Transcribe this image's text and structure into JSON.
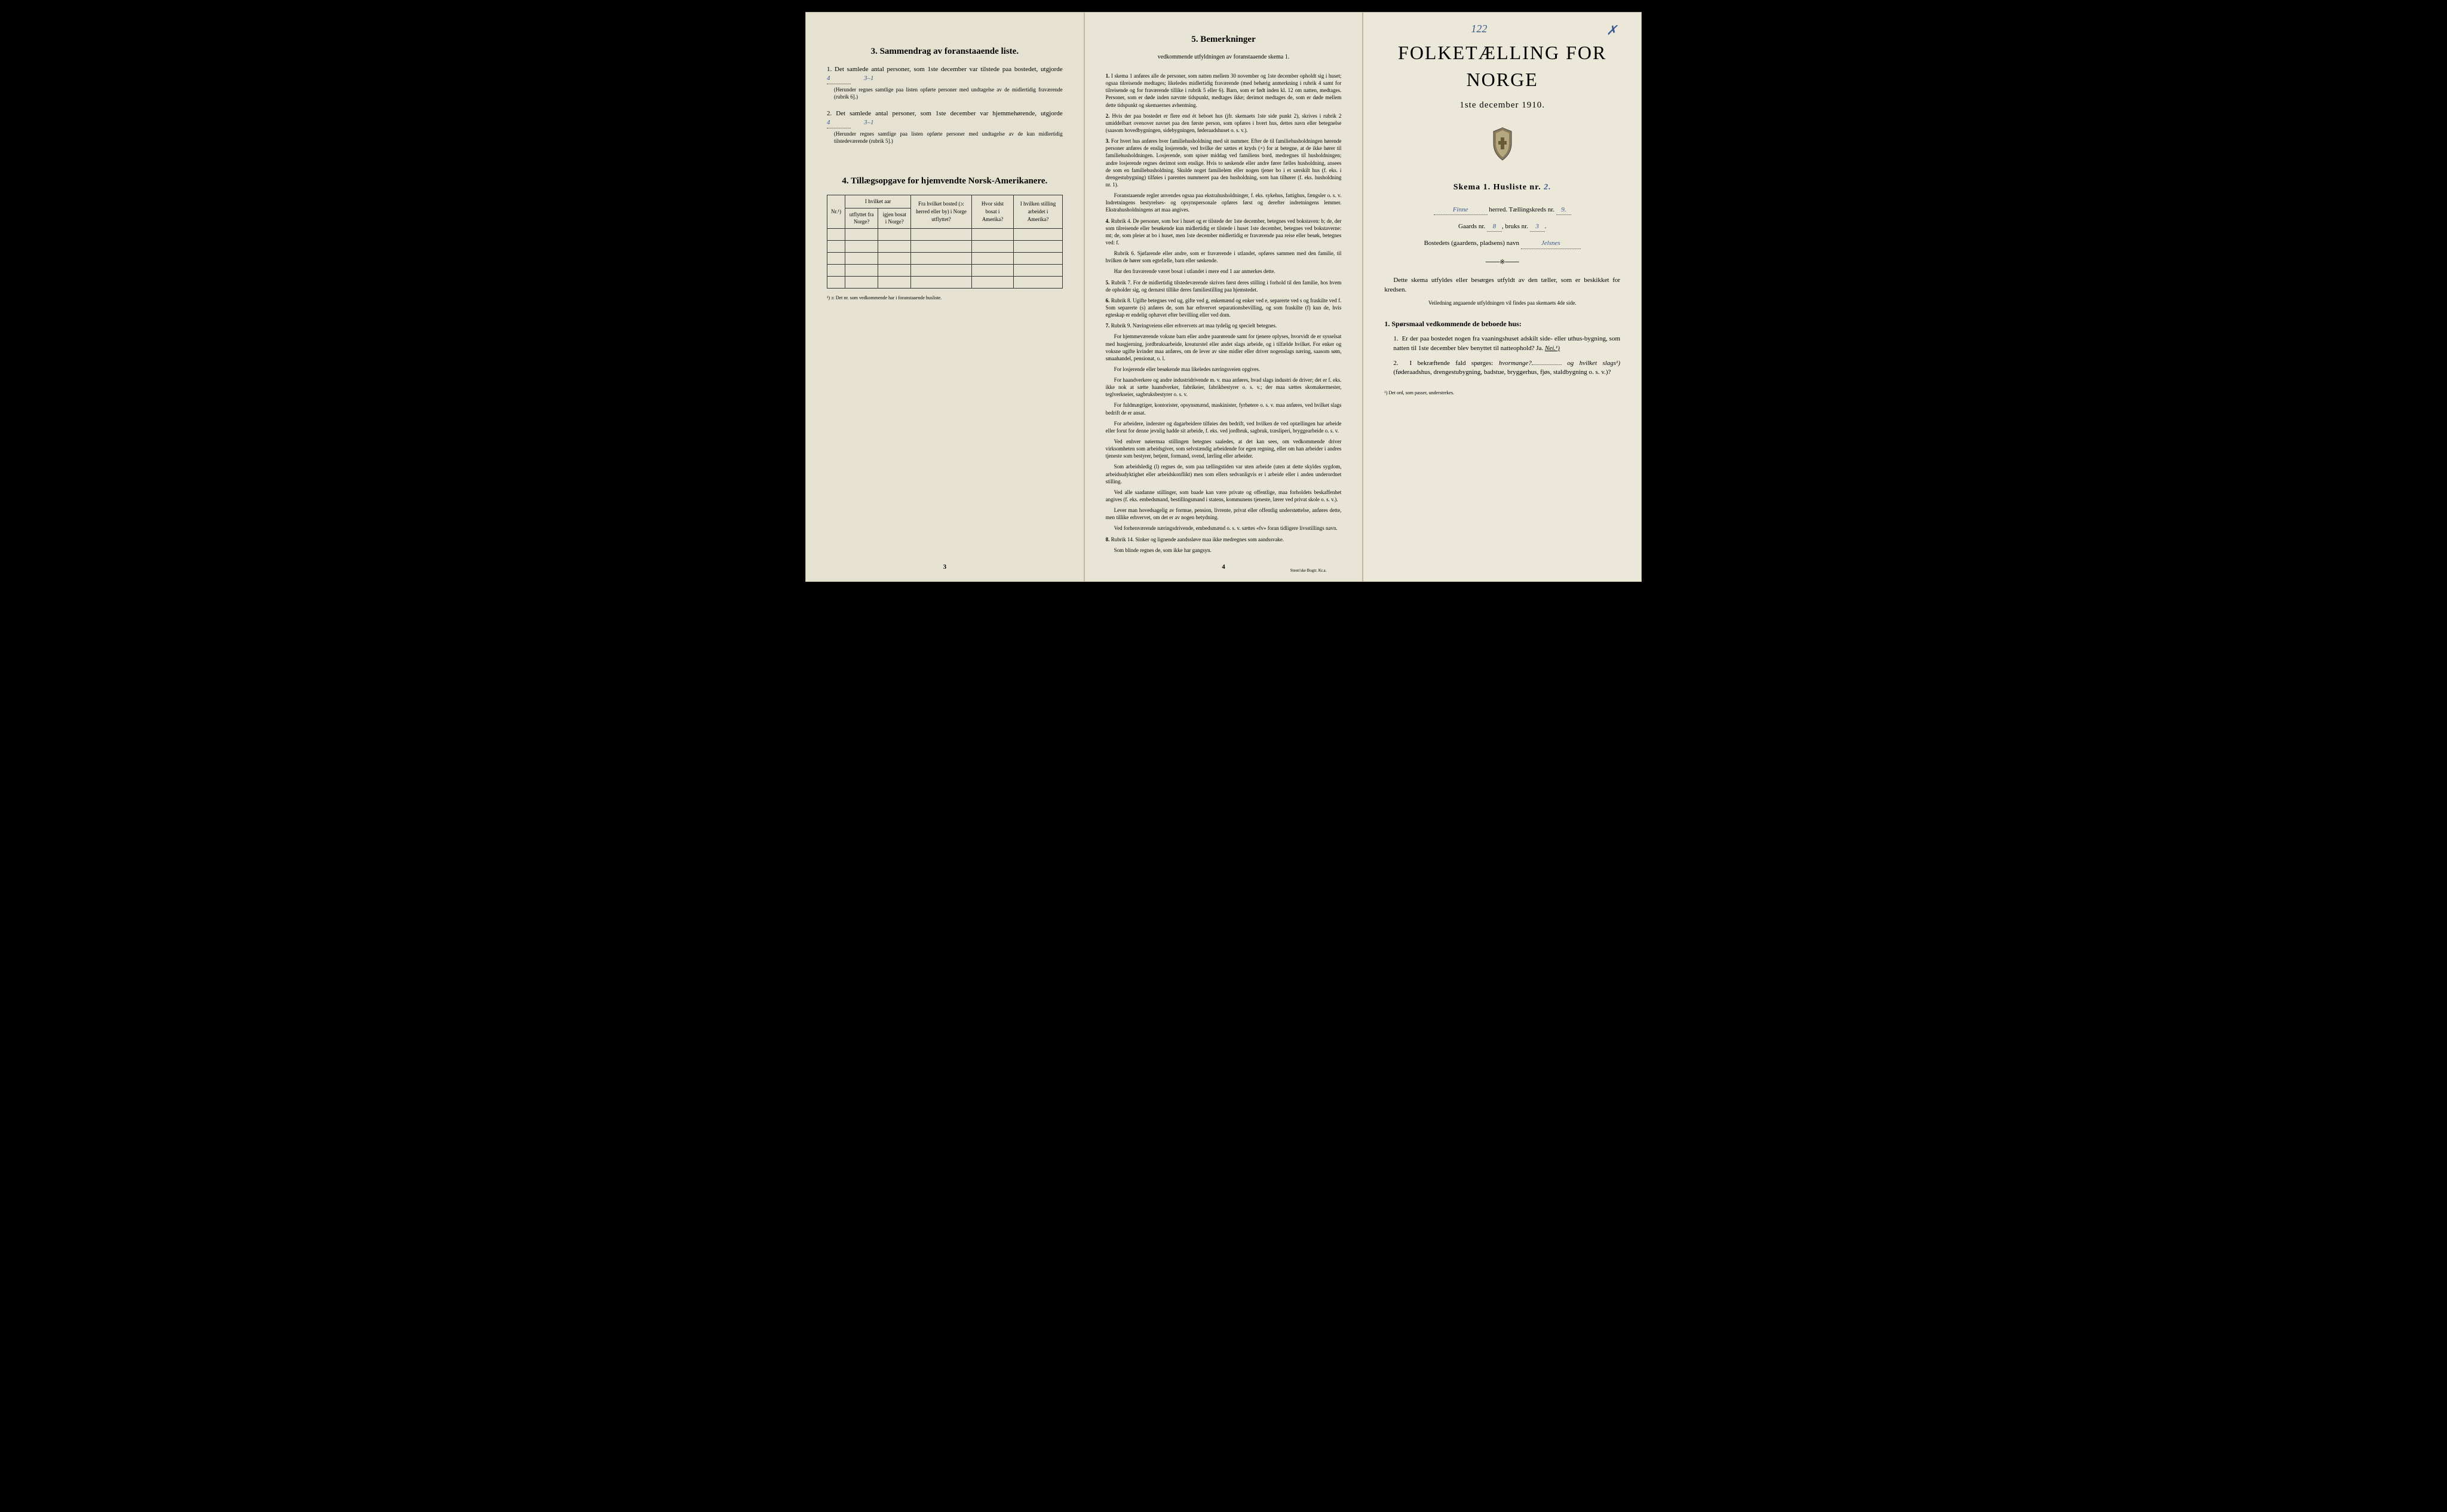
{
  "page1": {
    "section3_title": "3.  Sammendrag av foranstaaende liste.",
    "item1_text": "Det samlede antal personer, som 1ste december var tilstede paa bostedet, utgjorde",
    "item1_value": "4",
    "item1_gender": "3–1",
    "item1_note": "(Herunder regnes samtlige paa listen opførte personer med undtagelse av de midlertidig fraværende (rubrik 6].)",
    "item2_text": "Det samlede antal personer, som 1ste december var hjemmehørende, utgjorde",
    "item2_value": "4",
    "item2_gender": "3–1",
    "item2_note": "(Herunder regnes samtlige paa listen opførte personer med undtagelse av de kun midlertidig tilstedeværende (rubrik 5].)",
    "section4_title": "4.  Tillægsopgave for hjemvendte Norsk-Amerikanere.",
    "table": {
      "headers": {
        "nr": "Nr.¹)",
        "col1_top": "I hvilket aar",
        "col1a": "utflyttet fra Norge?",
        "col1b": "igjen bosat i Norge?",
        "col2": "Fra hvilket bosted (ɔ: herred eller by) i Norge utflyttet?",
        "col3": "Hvor sidst bosat i Amerika?",
        "col4": "I hvilken stilling arbeidet i Amerika?"
      }
    },
    "table_footnote": "¹) ɔ: Det nr. som vedkommende har i foranstaaende husliste.",
    "pagenum": "3"
  },
  "page2": {
    "section5_title": "5.  Bemerkninger",
    "section5_sub": "vedkommende utfyldningen av foranstaaende skema 1.",
    "items": [
      {
        "num": "1.",
        "text": "I skema 1 anføres alle de personer, som natten mellem 30 november og 1ste december opholdt sig i huset; ogsaa tilreisende medtages; likeledes midlertidig fraværende (med behørig anmerkning i rubrik 4 samt for tilreisende og for fraværende tillike i rubrik 5 eller 6). Barn, som er født inden kl. 12 om natten, medtages. Personer, som er døde inden nævnte tidspunkt, medtages ikke; derimot medtages de, som er døde mellem dette tidspunkt og skemaernes avhentning."
      },
      {
        "num": "2.",
        "text": "Hvis der paa bostedet er flere end ét beboet hus (jfr. skemaets 1ste side punkt 2), skrives i rubrik 2 umiddelbart ovenover navnet paa den første person, som opføres i hvert hus, dettes navn eller betegnelse (saasom hovedbygningen, sidebygningen, føderaadshuset o. s. v.)."
      },
      {
        "num": "3.",
        "text": "For hvert hus anføres hver familiehusholdning med sit nummer. Efter de til familiehusholdningen hørende personer anføres de enslig losjerende, ved hvilke der sættes et kryds (×) for at betegne, at de ikke hører til familiehusholdningen. Losjerende, som spiser middag ved familiens bord, medregnes til husholdningen; andre losjerende regnes derimot som enslige. Hvis to søskende eller andre fører fælles husholdning, ansees de som en familiehusholdning. Skulde noget familielem eller nogen tjener bo i et særskilt hus (f. eks. i drengestubygning) tilføies i parentes nummeret paa den husholdning, som han tilhører (f. eks. husholdning nr. 1)."
      },
      {
        "num": "",
        "text": "Foranstaaende regler anvendes ogsaa paa ekstrahusholdninger, f. eks. sykehus, fattighus, fængsler o. s. v. Indretningens bestyrelses- og opsynspersonale opføres først og derefter indretningens lemmer. Ekstrahusholdningens art maa angives."
      },
      {
        "num": "4.",
        "text": "Rubrik 4. De personer, som bor i huset og er tilstede der 1ste december, betegnes ved bokstaven: b; de, der som tilreisende eller besøkende kun midlertidig er tilstede i huset 1ste december, betegnes ved bokstaverne: mt; de, som pleier at bo i huset, men 1ste december midlertidig er fraværende paa reise eller besøk, betegnes ved: f."
      },
      {
        "num": "",
        "text": "Rubrik 6. Sjøfarende eller andre, som er fraværende i utlandet, opføres sammen med den familie, til hvilken de hører som egtefælle, barn eller søskende."
      },
      {
        "num": "",
        "text": "Har den fraværende været bosat i utlandet i mere end 1 aar anmerkes dette."
      },
      {
        "num": "5.",
        "text": "Rubrik 7. For de midlertidig tilstedeværende skrives først deres stilling i forhold til den familie, hos hvem de opholder sig, og dernæst tillike deres familiestilling paa hjemstedet."
      },
      {
        "num": "6.",
        "text": "Rubrik 8. Ugifte betegnes ved ug, gifte ved g, enkemænd og enker ved e, separerte ved s og fraskilte ved f. Som separerte (s) anføres de, som har erhvervet separationsbevilling, og som fraskilte (f) kun de, hvis egteskap er endelig ophævet efter bevilling eller ved dom."
      },
      {
        "num": "7.",
        "text": "Rubrik 9. Næringveiens eller erhvervets art maa tydelig og specielt betegnes."
      },
      {
        "num": "",
        "text": "For hjemmeværende voksne barn eller andre paarørende samt for tjenere oplyses, hvorvidt de er sysselsat med husgjerning, jordbruksarbeide, kreaturstel eller andet slags arbeide, og i tilfælde hvilket. For enker og voksne ugifte kvinder maa anføres, om de lever av sine midler eller driver nogenslags næring, saasom søm, smaahandel, pensionat, o. l."
      },
      {
        "num": "",
        "text": "For losjerende eller besøkende maa likeledes næringsveien opgives."
      },
      {
        "num": "",
        "text": "For haandverkere og andre industridrivende m. v. maa anføres, hvad slags industri de driver; det er f. eks. ikke nok at sætte haandverker, fabrikeier, fabrikbestyrer o. s. v.; der maa sættes skomakermester, teglverkseier, sagbruksbestyrer o. s. v."
      },
      {
        "num": "",
        "text": "For fuldmægtiger, kontorister, opsynsmænd, maskinister, fyrbøtere o. s. v. maa anføres, ved hvilket slags bedrift de er ansat."
      },
      {
        "num": "",
        "text": "For arbeidere, inderster og dagarbeidere tilføies den bedrift, ved hvilken de ved optællingen har arbeide eller forut for denne jevnlig hadde sit arbeide, f. eks. ved jordbruk, sagbruk, træsliperi, bryggearbeide o. s. v."
      },
      {
        "num": "",
        "text": "Ved enhver nøiermaa stillingen betegnes saaledes, at det kan sees, om vedkommende driver virksomheten som arbeidsgiver, som selvstændig arbeidende for egen regning, eller om han arbeider i andres tjeneste som bestyrer, betjent, formand, svend, lærling eller arbeider."
      },
      {
        "num": "",
        "text": "Som arbeidsledig (l) regnes de, som paa tællingstiden var uten arbeide (uten at dette skyldes sygdom, arbeidsudyktighet eller arbeidskonflikt) men som ellers sedvanligvis er i arbeide eller i anden underordnet stilling."
      },
      {
        "num": "",
        "text": "Ved alle saadanne stillinger, som baade kan være private og offentlige, maa forholdets beskaffenhet angives (f. eks. embedsmand, bestillingsmand i statens, kommunens tjeneste, lærer ved privat skole o. s. v.)."
      },
      {
        "num": "",
        "text": "Lever man hovedsagelig av formue, pension, livrente, privat eller offentlig understøttelse, anføres dette, men tillike erhvervet, om det er av nogen betydning."
      },
      {
        "num": "",
        "text": "Ved forhenværende næringsdrivende, embedsmænd o. s. v. sættes «fv» foran tidligere livsstillings navn."
      },
      {
        "num": "8.",
        "text": "Rubrik 14. Sinker og lignende aandssløve maa ikke medregnes som aandssvake."
      },
      {
        "num": "",
        "text": "Som blinde regnes de, som ikke har gangsyn."
      }
    ],
    "pagenum": "4",
    "printer": "Steen'ske Bogtr. Kr.a."
  },
  "page3": {
    "hand_122": "122",
    "hand_x": "✗",
    "main_title": "FOLKETÆLLING FOR NORGE",
    "subtitle": "1ste december 1910.",
    "skema": "Skema 1.  Husliste nr.",
    "skema_val": "2.",
    "herred": "herred.  Tællingskreds nr.",
    "herred_name": "Finne",
    "kreds_nr": "9.",
    "gaards": "Gaards nr.",
    "gaards_nr": "8",
    "bruks": "bruks nr.",
    "bruks_nr": "3",
    "bosted_label": "Bostedets (gaardens, pladsens) navn",
    "bosted_val": "Jelsnes",
    "para1": "Dette skema utfyldes eller besørges utfyldt av den tæller, som er beskikket for kredsen.",
    "para1_sub": "Veiledning angaaende utfyldningen vil findes paa skemaets 4de side.",
    "q_header": "1. Spørsmaal vedkommende de beboede hus:",
    "q1": "Er der paa bostedet nogen fra vaaningshuset adskilt side- eller uthus-bygning, som natten til 1ste december blev benyttet til natteophold?  Ja.",
    "q1_nei": "Nei.¹)",
    "q2_a": "I bekræftende fald spørges:",
    "q2_b": "hvormange?",
    "q2_c": "og hvilket slags¹)",
    "q2_d": "(føderaadshus, drengestubygning, badstue, bryggerhus, fjøs, staldbygning o. s. v.)?",
    "footnote": "¹) Det ord, som passer, understrekes."
  },
  "colors": {
    "background": "#000000",
    "paper1": "#e5e2d2",
    "paper2": "#e8e5d6",
    "paper3": "#ebe8da",
    "text": "#1a1a1a",
    "handwritten": "#3a5a8f",
    "border": "#333333"
  }
}
